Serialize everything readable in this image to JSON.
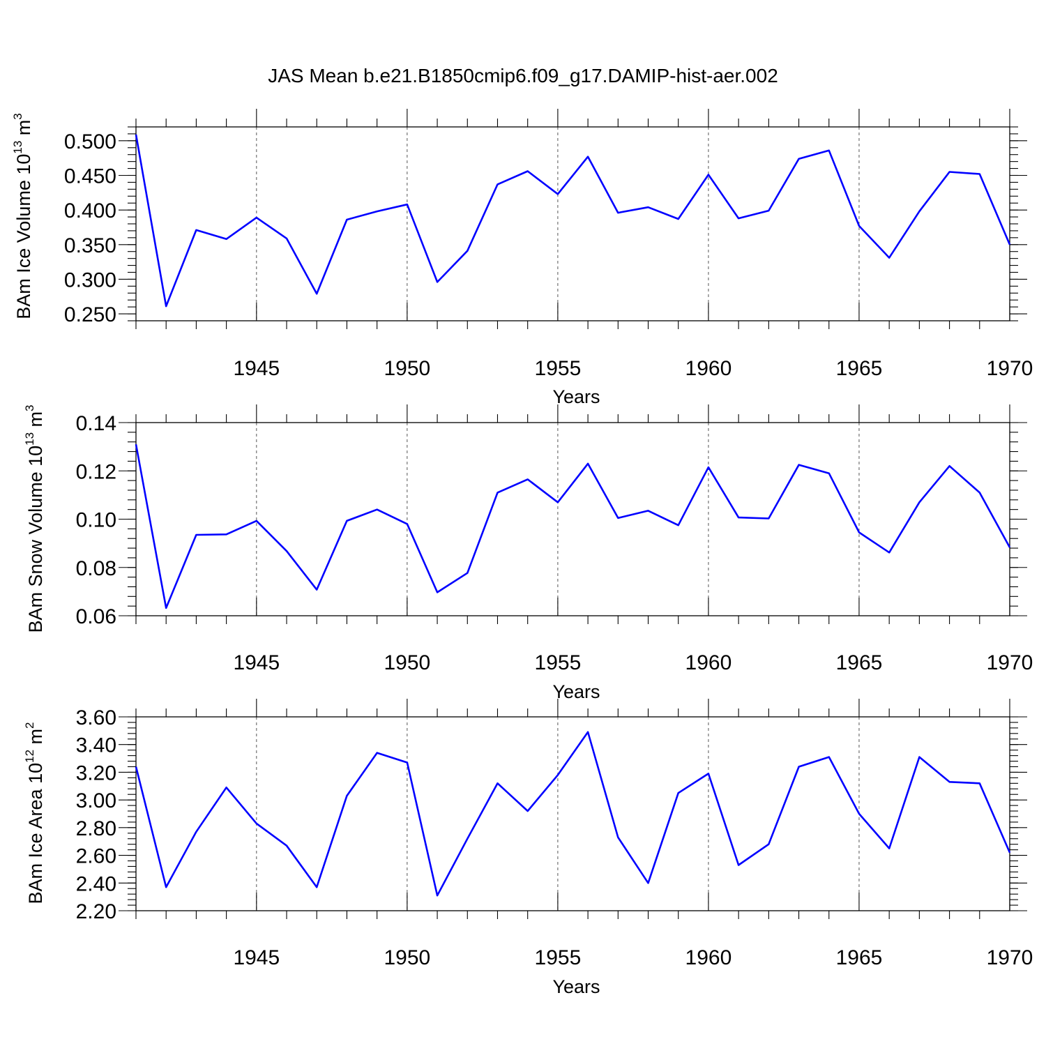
{
  "title": "JAS Mean b.e21.B1850cmip6.f09_g17.DAMIP-hist-aer.002",
  "colors": {
    "series": "#0000ff",
    "axis": "#000000",
    "grid": "#555555"
  },
  "chart_data": [
    {
      "type": "line",
      "xlabel": "Years",
      "ylabel": {
        "base": "BAm Ice Volume 10",
        "exp": "13",
        "unit": " m",
        "unit_exp": "3"
      },
      "xlim": [
        1941,
        1970
      ],
      "ylim": [
        0.24,
        0.52
      ],
      "yticks": [
        0.25,
        0.3,
        0.35,
        0.4,
        0.45,
        0.5
      ],
      "ytick_labels": [
        "0.250",
        "0.300",
        "0.350",
        "0.400",
        "0.450",
        "0.500"
      ],
      "xticks": [
        1945,
        1950,
        1955,
        1960,
        1965,
        1970
      ],
      "xtick_labels": [
        "1945",
        "1950",
        "1955",
        "1960",
        "1965",
        "1970"
      ],
      "grid": "dashed vertical at major x ticks",
      "x": [
        1941,
        1942,
        1943,
        1944,
        1945,
        1946,
        1947,
        1948,
        1949,
        1950,
        1951,
        1952,
        1953,
        1954,
        1955,
        1956,
        1957,
        1958,
        1959,
        1960,
        1961,
        1962,
        1963,
        1964,
        1965,
        1966,
        1967,
        1968,
        1969,
        1970
      ],
      "values": [
        0.509,
        0.261,
        0.371,
        0.358,
        0.389,
        0.359,
        0.279,
        0.386,
        0.398,
        0.408,
        0.296,
        0.341,
        0.437,
        0.456,
        0.423,
        0.477,
        0.396,
        0.404,
        0.387,
        0.451,
        0.388,
        0.399,
        0.474,
        0.486,
        0.377,
        0.331,
        0.398,
        0.455,
        0.452,
        0.35
      ]
    },
    {
      "type": "line",
      "xlabel": "Years",
      "ylabel": {
        "base": "BAm Snow Volume 10",
        "exp": "13",
        "unit": " m",
        "unit_exp": "3"
      },
      "xlim": [
        1941,
        1970
      ],
      "ylim": [
        0.06,
        0.14
      ],
      "yticks": [
        0.06,
        0.08,
        0.1,
        0.12,
        0.14
      ],
      "ytick_labels": [
        "0.06",
        "0.08",
        "0.10",
        "0.12",
        "0.14"
      ],
      "xticks": [
        1945,
        1950,
        1955,
        1960,
        1965,
        1970
      ],
      "xtick_labels": [
        "1945",
        "1950",
        "1955",
        "1960",
        "1965",
        "1970"
      ],
      "grid": "dashed vertical at major x ticks",
      "x": [
        1941,
        1942,
        1943,
        1944,
        1945,
        1946,
        1947,
        1948,
        1949,
        1950,
        1951,
        1952,
        1953,
        1954,
        1955,
        1956,
        1957,
        1958,
        1959,
        1960,
        1961,
        1962,
        1963,
        1964,
        1965,
        1966,
        1967,
        1968,
        1969,
        1970
      ],
      "values": [
        0.131,
        0.0632,
        0.0935,
        0.0937,
        0.0993,
        0.0868,
        0.0708,
        0.0993,
        0.104,
        0.098,
        0.0697,
        0.0777,
        0.111,
        0.1165,
        0.107,
        0.123,
        0.1005,
        0.1035,
        0.0975,
        0.1215,
        0.1007,
        0.1003,
        0.1225,
        0.119,
        0.0945,
        0.0862,
        0.107,
        0.122,
        0.111,
        0.0883
      ]
    },
    {
      "type": "line",
      "xlabel": "Years",
      "ylabel": {
        "base": "BAm Ice Area 10",
        "exp": "12",
        "unit": " m",
        "unit_exp": "2"
      },
      "xlim": [
        1941,
        1970
      ],
      "ylim": [
        2.2,
        3.6
      ],
      "yticks": [
        2.2,
        2.4,
        2.6,
        2.8,
        3.0,
        3.2,
        3.4,
        3.6
      ],
      "ytick_labels": [
        "2.20",
        "2.40",
        "2.60",
        "2.80",
        "3.00",
        "3.20",
        "3.40",
        "3.60"
      ],
      "xticks": [
        1945,
        1950,
        1955,
        1960,
        1965,
        1970
      ],
      "xtick_labels": [
        "1945",
        "1950",
        "1955",
        "1960",
        "1965",
        "1970"
      ],
      "grid": "dashed vertical at major x ticks",
      "x": [
        1941,
        1942,
        1943,
        1944,
        1945,
        1946,
        1947,
        1948,
        1949,
        1950,
        1951,
        1952,
        1953,
        1954,
        1955,
        1956,
        1957,
        1958,
        1959,
        1960,
        1961,
        1962,
        1963,
        1964,
        1965,
        1966,
        1967,
        1968,
        1969,
        1970
      ],
      "values": [
        3.24,
        2.37,
        2.77,
        3.09,
        2.83,
        2.67,
        2.37,
        3.03,
        3.34,
        3.27,
        2.31,
        2.72,
        3.12,
        2.92,
        3.18,
        3.49,
        2.73,
        2.4,
        3.05,
        3.19,
        2.53,
        2.68,
        3.24,
        3.31,
        2.9,
        2.65,
        3.31,
        3.13,
        3.12,
        2.62
      ]
    }
  ]
}
